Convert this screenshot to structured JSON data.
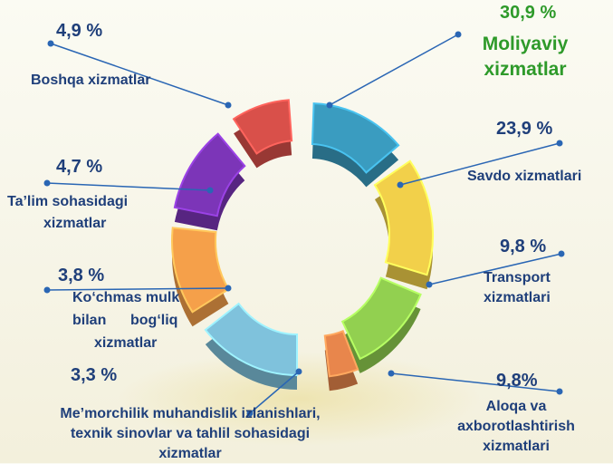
{
  "chart_data": {
    "type": "pie",
    "style": "3d-donut-exploded",
    "series": [
      {
        "label_lines": [
          "Moliyaviy",
          "xizmatlar"
        ],
        "value": 30.9,
        "display": "30,9 %",
        "color": "#3a9cc0",
        "highlight": true
      },
      {
        "label_lines": [
          "Savdo xizmatlari"
        ],
        "value": 23.9,
        "display": "23,9 %",
        "color": "#f2d04a"
      },
      {
        "label_lines": [
          "Transport",
          "xizmatlari"
        ],
        "value": 9.8,
        "display": "9,8 %",
        "color": "#92d050"
      },
      {
        "label_lines": [
          "Aloqa va",
          "axborotlashtirish",
          "xizmatlari"
        ],
        "value": 9.8,
        "display": "9,8%",
        "color": "#e8864c"
      },
      {
        "label_lines": [
          "Me’morchilik muhandislik izlanishlari,",
          "texnik sinovlar va tahlil sohasidagi",
          "xizmatlar"
        ],
        "value": 3.3,
        "display": "3,3 %",
        "color": "#7fc2dc"
      },
      {
        "label_lines": [
          "Ko‘chmas mulk",
          "bilan      bog‘liq",
          "xizmatlar"
        ],
        "value": 3.8,
        "display": "3,8 %",
        "color": "#f5a04a"
      },
      {
        "label_lines": [
          "Ta’lim  sohasidagi",
          "xizmatlar"
        ],
        "value": 4.7,
        "display": "4,7 %",
        "color": "#7c35b8"
      },
      {
        "label_lines": [
          "Boshqa xizmatlar"
        ],
        "value": 4.9,
        "display": "4,9 %",
        "color": "#d9504a"
      }
    ],
    "legend": "none"
  },
  "colors": {
    "label_text": "#1f3f7a",
    "highlight_text": "#2e9a2a",
    "leader_line": "#2a66b4"
  }
}
